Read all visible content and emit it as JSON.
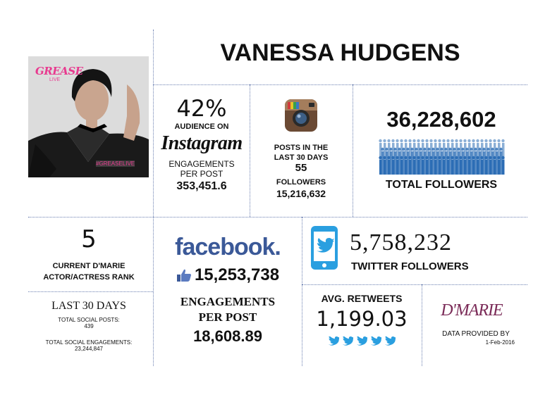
{
  "header": {
    "name": "VANESSA HUDGENS"
  },
  "photo": {
    "poster_title": "GREASE",
    "poster_sub": "LIVE",
    "hashtag": "#GREASELIVE"
  },
  "instagram_stats": {
    "percent": "42%",
    "audience_label": "AUDIENCE ON",
    "wordmark": "Instagram",
    "engagements_label_1": "ENGAGEMENTS",
    "engagements_label_2": "PER POST",
    "engagements_value": "353,451.6"
  },
  "instagram_posts": {
    "posts_label_1": "POSTS IN THE",
    "posts_label_2": "LAST 30 DAYS",
    "posts_value": "55",
    "followers_label": "FOLLOWERS",
    "followers_value": "15,216,632"
  },
  "total": {
    "followers_value": "36,228,602",
    "followers_label": "TOTAL FOLLOWERS"
  },
  "rank": {
    "value": "5",
    "label_1": "CURRENT D'MARIE",
    "label_2": "ACTOR/ACTRESS RANK",
    "last30_title": "LAST 30 DAYS",
    "social_posts_label": "TOTAL SOCIAL POSTS:",
    "social_posts_value": "439",
    "social_eng_label": "TOTAL SOCIAL ENGAGEMENTS:",
    "social_eng_value": "23,244,847"
  },
  "facebook": {
    "wordmark": "facebook.",
    "likes_value": "15,253,738",
    "engagements_label_1": "ENGAGEMENTS",
    "engagements_label_2": "PER POST",
    "engagements_value": "18,608.89"
  },
  "twitter": {
    "followers_value": "5,758,232",
    "followers_label": "TWITTER FOLLOWERS",
    "retweets_label": "AVG. RETWEETS",
    "retweets_value": "1,199.03"
  },
  "credit": {
    "logo_text": "D'MARIE",
    "provided_label": "DATA PROVIDED BY",
    "date": "1-Feb-2016"
  },
  "colors": {
    "divider": "#6b7fb0",
    "facebook": "#3b5998",
    "twitter": "#2a9fe0",
    "dmarie": "#7a2a57",
    "bars": "#2c6db5"
  }
}
